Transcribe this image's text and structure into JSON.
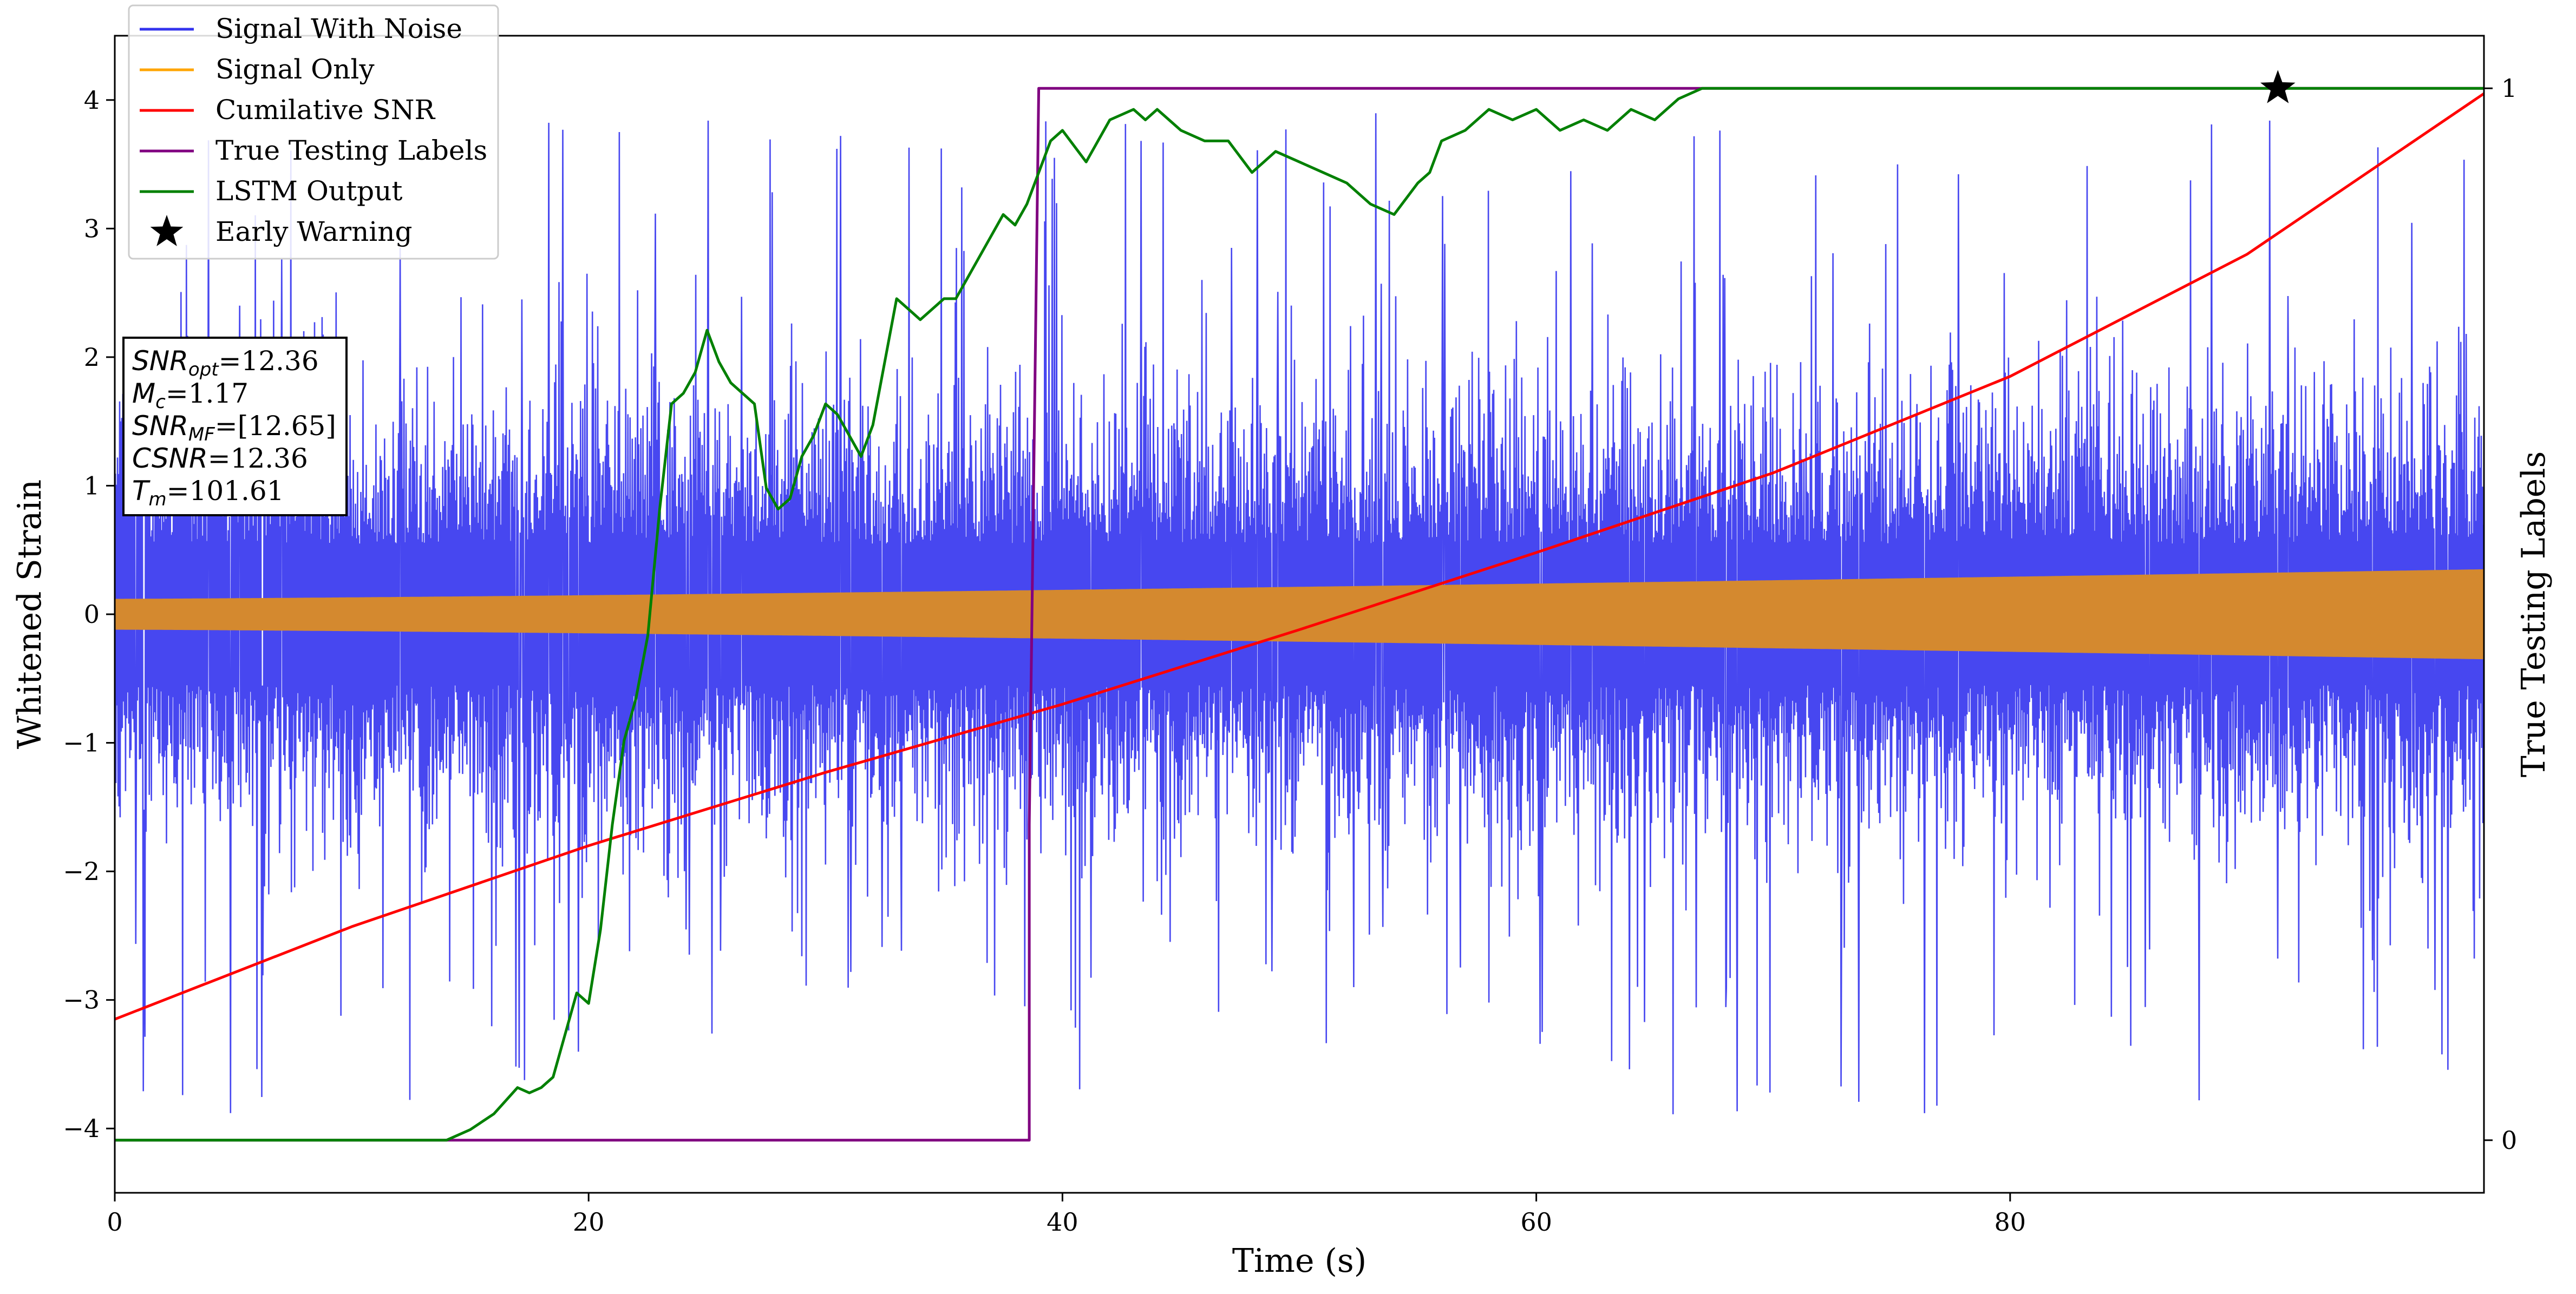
{
  "chart_data": {
    "type": "line",
    "xlabel": "Time (s)",
    "ylabel": "Whitened Strain",
    "y2label": "True Testing Labels",
    "xlim": [
      0,
      100
    ],
    "ylim": [
      -4.5,
      4.5
    ],
    "y2lim": [
      -0.05,
      1.05
    ],
    "xticks": [
      0,
      20,
      40,
      60,
      80
    ],
    "xtick_labels": [
      "0",
      "20",
      "40",
      "60",
      "80"
    ],
    "yticks": [
      -4,
      -3,
      -2,
      -1,
      0,
      1,
      2,
      3,
      4
    ],
    "ytick_labels": [
      "−4",
      "−3",
      "−2",
      "−1",
      "0",
      "1",
      "2",
      "3",
      "4"
    ],
    "y2ticks": [
      0,
      1
    ],
    "y2tick_labels": [
      "0",
      "1"
    ],
    "grid": false,
    "legend_position": "top-left",
    "legend": [
      {
        "label": "Signal With Noise",
        "color": "#3333ee",
        "marker": "line"
      },
      {
        "label": "Signal Only",
        "color": "#ffa500",
        "marker": "line"
      },
      {
        "label": "Cumilative SNR",
        "color": "#ff0000",
        "marker": "line"
      },
      {
        "label": "True Testing Labels",
        "color": "#800080",
        "marker": "line"
      },
      {
        "label": "LSTM Output",
        "color": "#008000",
        "marker": "line"
      },
      {
        "label": "Early Warning",
        "color": "#000000",
        "marker": "star"
      }
    ],
    "annotation": [
      {
        "label": "SNR",
        "sub": "opt",
        "value": "=12.36"
      },
      {
        "label": "M",
        "sub": "c",
        "value": "=1.17"
      },
      {
        "label": "SNR",
        "sub": "MF",
        "value": "=[12.65]"
      },
      {
        "label": "CSNR",
        "sub": "",
        "value": "=12.36"
      },
      {
        "label": "T",
        "sub": "m",
        "value": "=101.61"
      }
    ],
    "series": [
      {
        "name": "Signal With Noise",
        "axis": "left",
        "color": "#3333ee",
        "style": "dense noise band",
        "typical_range": [
          -2.5,
          2.5
        ],
        "extremes": [
          -3.9,
          4.0
        ]
      },
      {
        "name": "Signal Only",
        "axis": "left",
        "color": "#ffa500",
        "style": "dense chirp band",
        "amplitude_start": 0.12,
        "amplitude_end": 0.35
      },
      {
        "name": "Cumilative SNR",
        "axis": "left",
        "color": "#ff0000",
        "x": [
          0,
          10,
          20,
          30,
          40,
          50,
          60,
          70,
          80,
          90,
          100
        ],
        "y": [
          -3.15,
          -2.43,
          -1.8,
          -1.23,
          -0.7,
          -0.12,
          0.48,
          1.1,
          1.85,
          2.8,
          4.05
        ]
      },
      {
        "name": "True Testing Labels",
        "axis": "right",
        "color": "#800080",
        "x": [
          0,
          38.6,
          38.6,
          39.0,
          100
        ],
        "y": [
          0,
          0,
          0.3,
          1,
          1
        ]
      },
      {
        "name": "LSTM Output",
        "axis": "right",
        "color": "#008000",
        "x": [
          0,
          14,
          15,
          16,
          17,
          17.5,
          18,
          18.5,
          19,
          19.5,
          20,
          20.5,
          21,
          21.5,
          22,
          22.5,
          23,
          23.5,
          24,
          24.5,
          25,
          25.5,
          26,
          27,
          27.5,
          28,
          28.5,
          29,
          29.5,
          30,
          30.5,
          31,
          31.5,
          32,
          33,
          33.5,
          34,
          35,
          35.5,
          36,
          37,
          37.5,
          38,
          38.5,
          39,
          39.5,
          40,
          41,
          42,
          43,
          43.5,
          44,
          45,
          46,
          47,
          48,
          48.5,
          49,
          50,
          51,
          52,
          53,
          54,
          55,
          55.5,
          56,
          57,
          57.5,
          58,
          59,
          60,
          61,
          62,
          63,
          64,
          65,
          66,
          67,
          68,
          69,
          70,
          72,
          75,
          80,
          84,
          86,
          88,
          90,
          91.3,
          95,
          100
        ],
        "y": [
          0,
          0,
          0.01,
          0.025,
          0.05,
          0.045,
          0.05,
          0.06,
          0.1,
          0.14,
          0.13,
          0.2,
          0.3,
          0.38,
          0.42,
          0.48,
          0.6,
          0.7,
          0.71,
          0.73,
          0.77,
          0.74,
          0.72,
          0.7,
          0.62,
          0.6,
          0.61,
          0.65,
          0.67,
          0.7,
          0.69,
          0.67,
          0.65,
          0.68,
          0.8,
          0.79,
          0.78,
          0.8,
          0.8,
          0.82,
          0.86,
          0.88,
          0.87,
          0.89,
          0.92,
          0.95,
          0.96,
          0.93,
          0.97,
          0.98,
          0.97,
          0.98,
          0.96,
          0.95,
          0.95,
          0.92,
          0.93,
          0.94,
          0.93,
          0.92,
          0.91,
          0.89,
          0.88,
          0.91,
          0.92,
          0.95,
          0.96,
          0.97,
          0.98,
          0.97,
          0.98,
          0.96,
          0.97,
          0.96,
          0.98,
          0.97,
          0.99,
          1.0,
          1.0,
          1.0,
          1.0,
          1.0,
          1.0,
          1.0,
          1.0,
          1.0,
          1.0,
          1.0,
          1.0,
          1.0,
          1.0
        ]
      },
      {
        "name": "Early Warning",
        "axis": "right",
        "color": "#000000",
        "marker": "star",
        "x": [
          91.3
        ],
        "y": [
          1.0
        ]
      }
    ]
  }
}
